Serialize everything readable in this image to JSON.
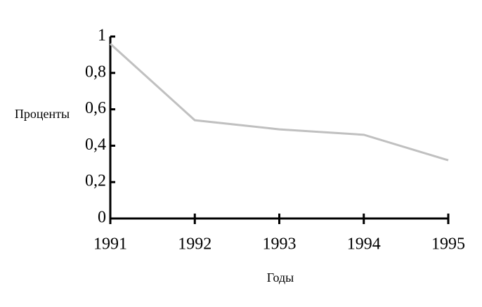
{
  "chart_data": {
    "type": "line",
    "x_label": "Годы",
    "y_label": "Проценты",
    "x": [
      1991,
      1992,
      1993,
      1994,
      1995
    ],
    "values": [
      0.96,
      0.54,
      0.49,
      0.46,
      0.32
    ],
    "color": "#c0c0c0",
    "xlim": [
      1991,
      1995
    ],
    "xticks": [
      1991,
      1992,
      1993,
      1994,
      1995
    ],
    "ylim": [
      0,
      1
    ],
    "yticks": [
      0,
      {
        "value": 0.2,
        "label": "0,2"
      },
      {
        "value": 0.4,
        "label": "0,4"
      },
      {
        "value": 0.6,
        "label": "0,6"
      },
      {
        "value": 0.8,
        "label": "0,8"
      },
      1
    ],
    "grid": false
  }
}
